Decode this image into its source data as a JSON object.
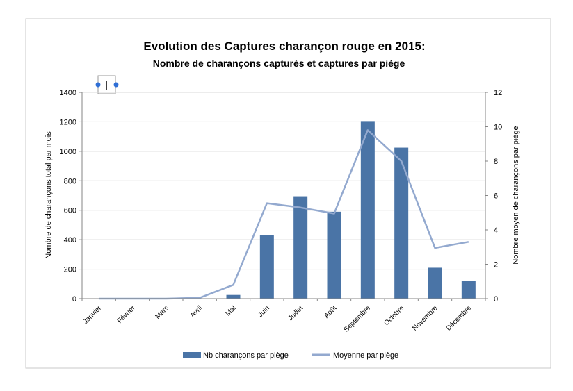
{
  "chart_data": {
    "type": "bar",
    "title": "Evolution des Captures charançon rouge  en 2015:",
    "subtitle": "Nombre de charançons capturés et captures par piège",
    "categories": [
      "Janvier",
      "Février",
      "Mars",
      "Avril",
      "Mai",
      "Juin",
      "Juillet",
      "Août",
      "Septembre",
      "Octobre",
      "Novembre",
      "Décembre"
    ],
    "series": [
      {
        "name": "Nb charançons par piège",
        "type": "bar",
        "axis": "left",
        "color": "#4a74a6",
        "values": [
          0,
          0,
          0,
          0,
          25,
          430,
          695,
          590,
          1205,
          1025,
          210,
          120
        ]
      },
      {
        "name": "Moyenne par piège",
        "type": "line",
        "axis": "right",
        "color": "#93a9cf",
        "values": [
          0,
          0,
          0,
          0.05,
          0.8,
          5.55,
          5.3,
          4.95,
          9.8,
          8.0,
          2.95,
          3.3
        ]
      }
    ],
    "ylabel": "Nombre de charançons total par mois",
    "y2label": "Nombre moyen de charançons par piège",
    "ylim": [
      0,
      1400
    ],
    "y2lim": [
      0,
      12
    ],
    "yticks": [
      "0",
      "200",
      "400",
      "600",
      "800",
      "1000",
      "1200",
      "1400"
    ],
    "y2ticks": [
      "0",
      "2",
      "4",
      "6",
      "8",
      "10",
      "12"
    ],
    "grid": true,
    "legend": "bottom"
  }
}
